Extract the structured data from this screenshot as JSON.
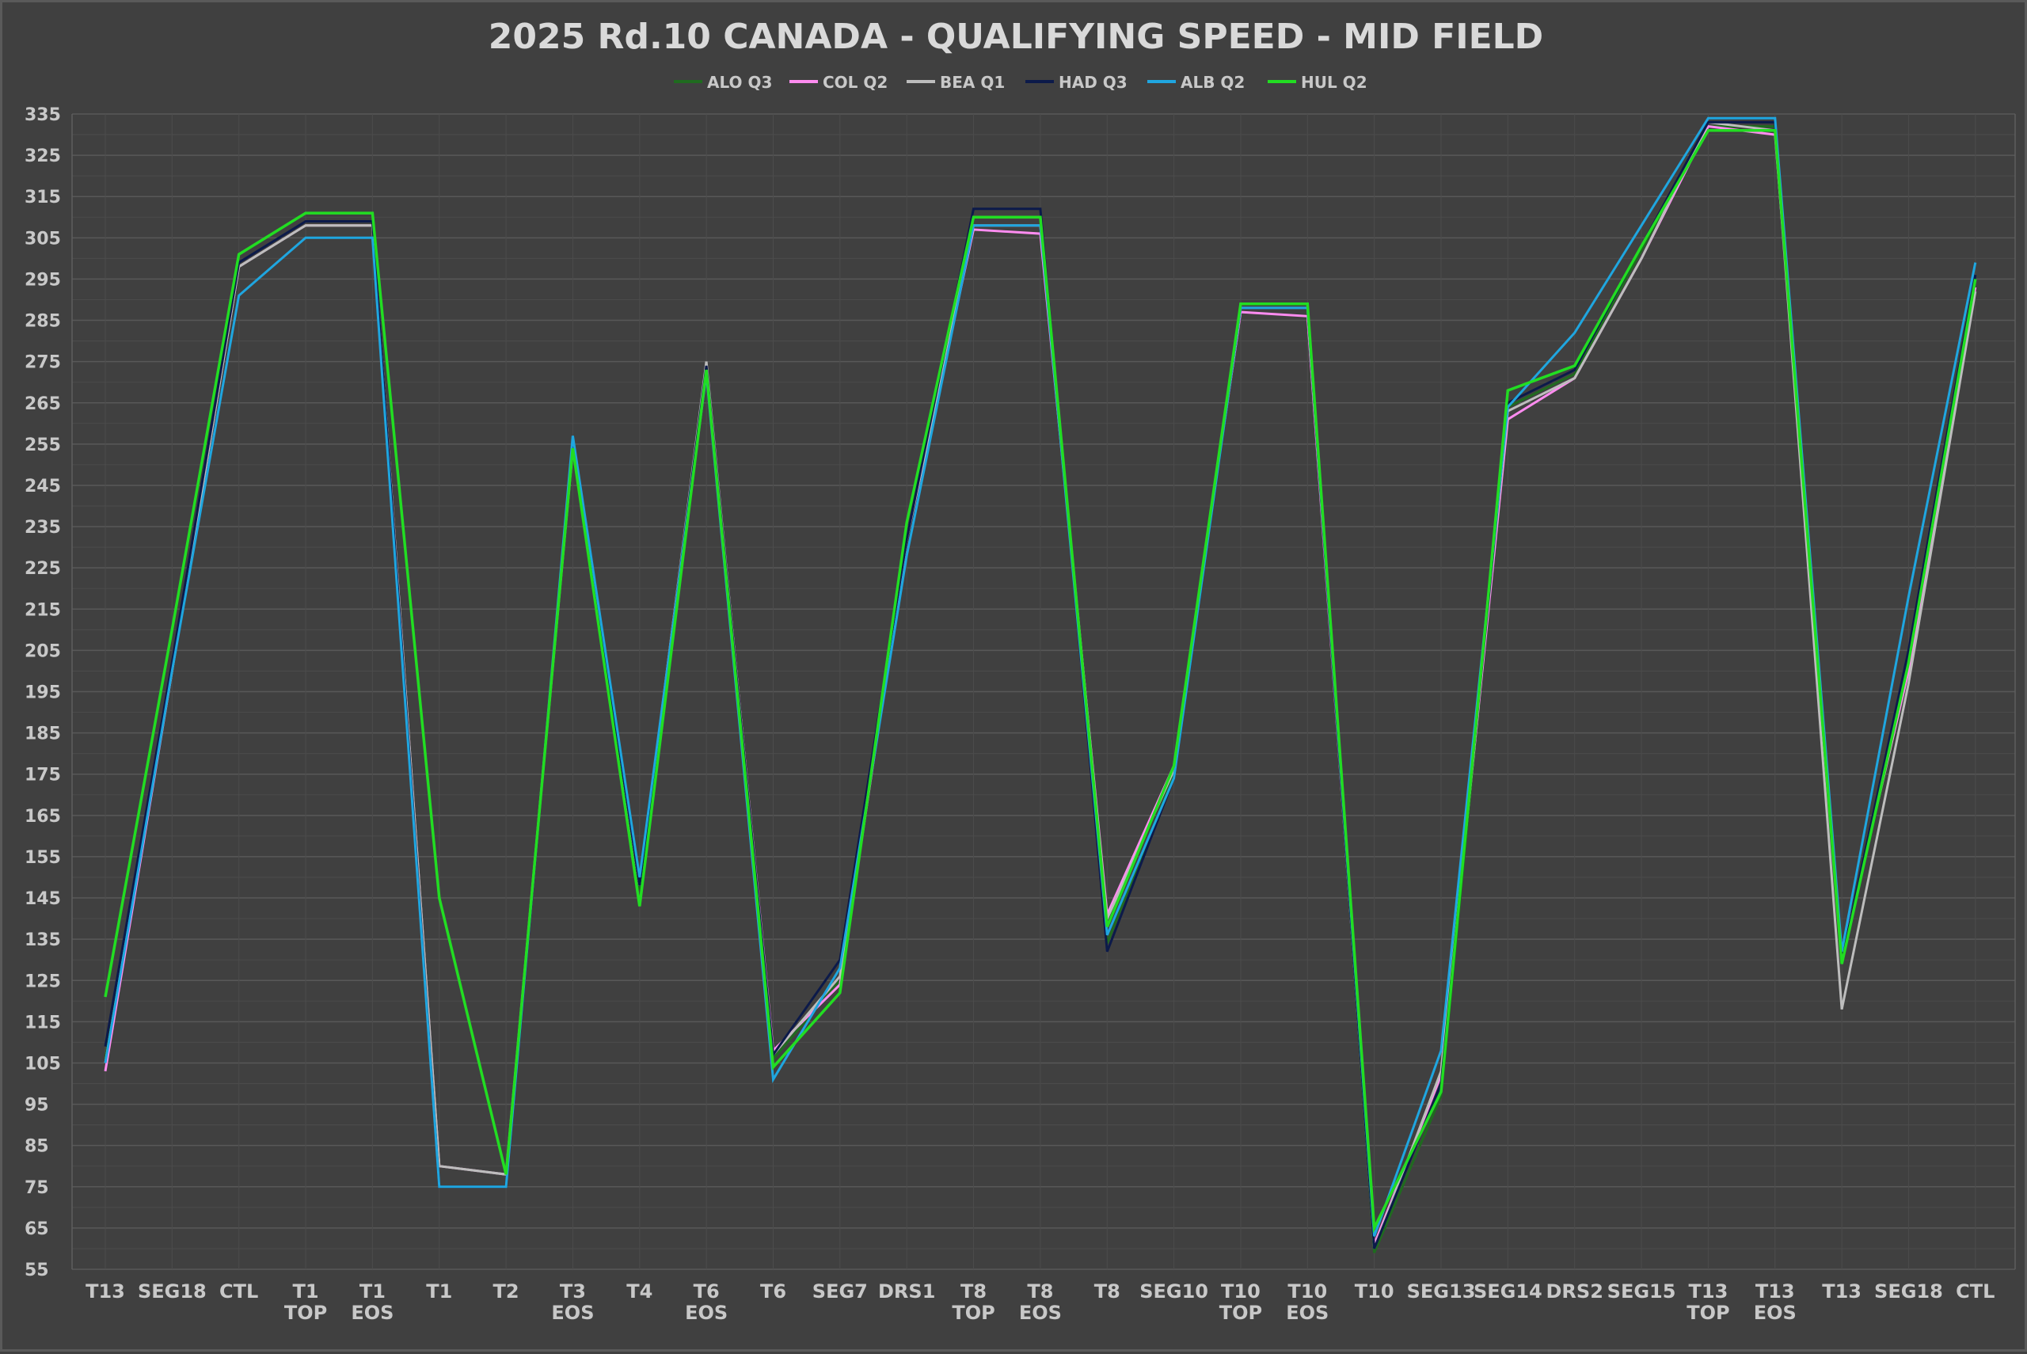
{
  "chart_data": {
    "type": "line",
    "title": "2025 Rd.10 CANADA - QUALIFYING SPEED - MID FIELD",
    "xlabel": "",
    "ylabel": "",
    "ylim": [
      55,
      335
    ],
    "yticks": [
      55,
      65,
      75,
      85,
      95,
      105,
      115,
      125,
      135,
      145,
      155,
      165,
      175,
      185,
      195,
      205,
      215,
      225,
      235,
      245,
      255,
      265,
      275,
      285,
      295,
      305,
      315,
      325,
      335
    ],
    "grid": true,
    "legend_position": "top-center",
    "categories": [
      [
        "T13"
      ],
      [
        "SEG18"
      ],
      [
        "CTL"
      ],
      [
        "T1",
        "TOP"
      ],
      [
        "T1",
        "EOS"
      ],
      [
        "T1"
      ],
      [
        "T2"
      ],
      [
        "T3",
        "EOS"
      ],
      [
        "T4"
      ],
      [
        "T6",
        "EOS"
      ],
      [
        "T6"
      ],
      [
        "SEG7"
      ],
      [
        "DRS1"
      ],
      [
        "T8",
        "TOP"
      ],
      [
        "T8",
        "EOS"
      ],
      [
        "T8"
      ],
      [
        "SEG10"
      ],
      [
        "T10",
        "TOP"
      ],
      [
        "T10",
        "EOS"
      ],
      [
        "T10"
      ],
      [
        "SEG13"
      ],
      [
        "SEG14"
      ],
      [
        "DRS2"
      ],
      [
        "SEG15"
      ],
      [
        "T13",
        "TOP"
      ],
      [
        "T13",
        "EOS"
      ],
      [
        "T13"
      ],
      [
        "SEG18"
      ],
      [
        "CTL"
      ]
    ],
    "series": [
      {
        "name": "ALO Q3",
        "color": "#1f6b1f",
        "values": [
          106,
          200,
          298,
          308,
          308,
          80,
          78,
          255,
          147,
          274,
          106,
          125,
          232,
          310,
          310,
          134,
          175,
          288,
          288,
          59,
          97,
          264,
          272,
          302,
          332,
          332,
          130,
          200,
          293
        ]
      },
      {
        "name": "COL Q2",
        "color": "#ff8cf0",
        "values": [
          103,
          200,
          298,
          308,
          308,
          80,
          78,
          254,
          148,
          274,
          108,
          124,
          232,
          307,
          306,
          141,
          177,
          287,
          286,
          61,
          102,
          261,
          271,
          300,
          332,
          330,
          131,
          200,
          293
        ]
      },
      {
        "name": "BEA Q1",
        "color": "#bdbdbd",
        "values": [
          105,
          200,
          298,
          308,
          308,
          80,
          78,
          254,
          148,
          275,
          107,
          126,
          232,
          308,
          308,
          140,
          176,
          288,
          288,
          60,
          103,
          263,
          271,
          300,
          333,
          331,
          118,
          197,
          292
        ]
      },
      {
        "name": "HAD Q3",
        "color": "#0c1a4a",
        "values": [
          109,
          202,
          299,
          309,
          309,
          75,
          75,
          256,
          148,
          274,
          107,
          130,
          232,
          312,
          312,
          132,
          174,
          288,
          288,
          60,
          100,
          265,
          273,
          303,
          333,
          333,
          130,
          205,
          296
        ]
      },
      {
        "name": "ALB Q2",
        "color": "#1fa6e0",
        "values": [
          105,
          200,
          291,
          305,
          305,
          75,
          75,
          257,
          150,
          272,
          101,
          128,
          228,
          308,
          308,
          136,
          174,
          288,
          288,
          63,
          108,
          264,
          282,
          308,
          334,
          334,
          132,
          218,
          299
        ]
      },
      {
        "name": "HUL Q2",
        "color": "#22dd22",
        "values": [
          121,
          210,
          301,
          311,
          311,
          145,
          78,
          254,
          143,
          273,
          104,
          122,
          236,
          310,
          310,
          138,
          177,
          289,
          289,
          65,
          98,
          268,
          274,
          303,
          331,
          331,
          129,
          202,
          295
        ]
      }
    ]
  }
}
